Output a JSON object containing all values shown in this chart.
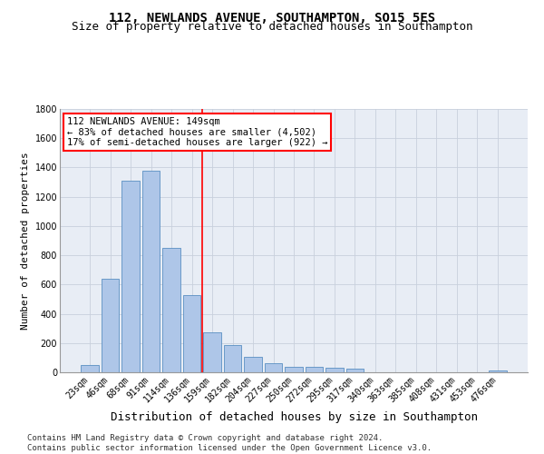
{
  "title": "112, NEWLANDS AVENUE, SOUTHAMPTON, SO15 5ES",
  "subtitle": "Size of property relative to detached houses in Southampton",
  "xlabel": "Distribution of detached houses by size in Southampton",
  "ylabel": "Number of detached properties",
  "categories": [
    "23sqm",
    "46sqm",
    "68sqm",
    "91sqm",
    "114sqm",
    "136sqm",
    "159sqm",
    "182sqm",
    "204sqm",
    "227sqm",
    "250sqm",
    "272sqm",
    "295sqm",
    "317sqm",
    "340sqm",
    "363sqm",
    "385sqm",
    "408sqm",
    "431sqm",
    "453sqm",
    "476sqm"
  ],
  "values": [
    50,
    640,
    1310,
    1380,
    848,
    530,
    275,
    185,
    105,
    65,
    38,
    38,
    28,
    22,
    0,
    0,
    0,
    0,
    0,
    0,
    15
  ],
  "bar_color": "#aec6e8",
  "bar_edge_color": "#5a8fc2",
  "vline_x": 5.5,
  "vline_color": "red",
  "annotation_line1": "112 NEWLANDS AVENUE: 149sqm",
  "annotation_line2": "← 83% of detached houses are smaller (4,502)",
  "annotation_line3": "17% of semi-detached houses are larger (922) →",
  "annotation_box_color": "white",
  "annotation_box_edge_color": "red",
  "ylim": [
    0,
    1800
  ],
  "yticks": [
    0,
    200,
    400,
    600,
    800,
    1000,
    1200,
    1400,
    1600,
    1800
  ],
  "footnote": "Contains HM Land Registry data © Crown copyright and database right 2024.\nContains public sector information licensed under the Open Government Licence v3.0.",
  "grid_color": "#c8d0dc",
  "bg_color": "#e8edf5",
  "title_fontsize": 10,
  "subtitle_fontsize": 9,
  "ylabel_fontsize": 8,
  "xlabel_fontsize": 9,
  "tick_fontsize": 7,
  "annotation_fontsize": 7.5,
  "footnote_fontsize": 6.5
}
